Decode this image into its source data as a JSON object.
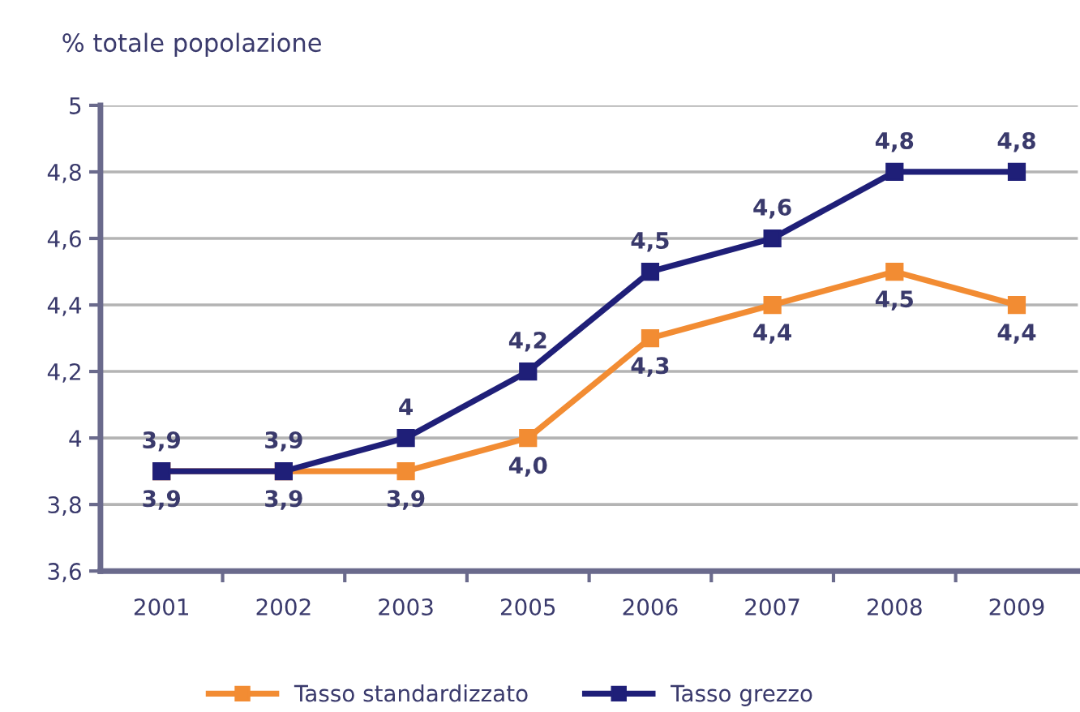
{
  "chart_data": {
    "type": "line",
    "ylabel": "% totale popolazione",
    "categories": [
      "2001",
      "2002",
      "2003",
      "2005",
      "2006",
      "2007",
      "2008",
      "2009"
    ],
    "series": [
      {
        "name": "Tasso standardizzato",
        "color": "#f28c33",
        "values": [
          3.9,
          3.9,
          3.9,
          4.0,
          4.3,
          4.4,
          4.5,
          4.4
        ],
        "value_labels": [
          "3,9",
          "3,9",
          "3,9",
          "4,0",
          "4,3",
          "4,4",
          "4,5",
          "4,4"
        ]
      },
      {
        "name": "Tasso grezzo",
        "color": "#1f1f78",
        "values": [
          3.9,
          3.9,
          4,
          4.2,
          4.5,
          4.6,
          4.8,
          4.8
        ],
        "value_labels": [
          "3,9",
          "3,9",
          "4",
          "4,2",
          "4,5",
          "4,6",
          "4,8",
          "4,8"
        ]
      }
    ],
    "ylim": [
      3.6,
      5
    ],
    "yticks": [
      {
        "value": 3.6,
        "label": "3,6"
      },
      {
        "value": 3.8,
        "label": "3,8"
      },
      4,
      {
        "value": 4.2,
        "label": "4,2"
      },
      {
        "value": 4.4,
        "label": "4,4"
      },
      {
        "value": 4.6,
        "label": "4,6"
      },
      {
        "value": 4.8,
        "label": "4,8"
      },
      5
    ],
    "grid": "y",
    "legend": "bottom",
    "marker": "square",
    "line_style": "solid"
  }
}
